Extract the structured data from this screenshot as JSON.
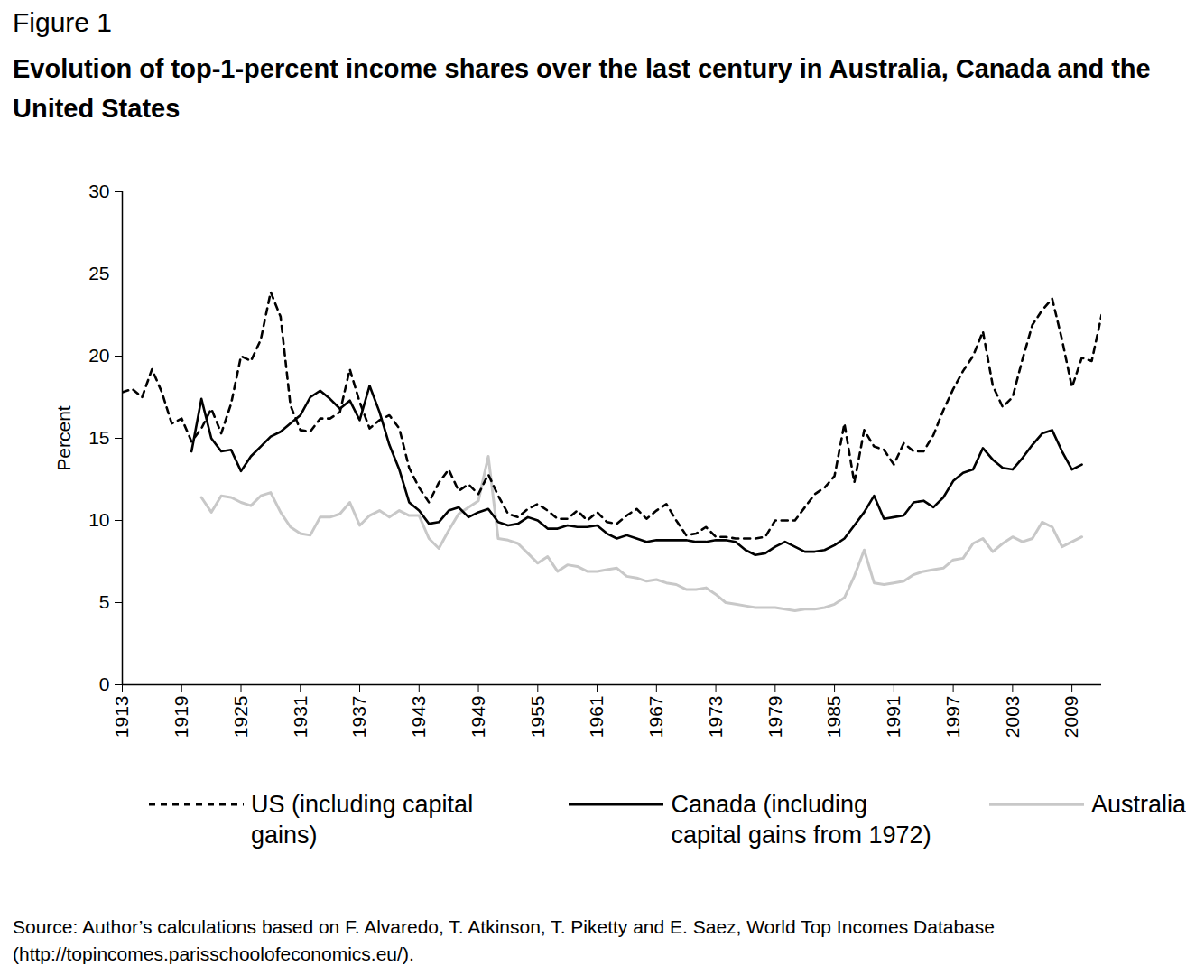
{
  "chart_data": {
    "type": "line",
    "figure_label": "Figure 1",
    "title": "Evolution of top-1-percent income shares over the last century in Australia, Canada and the United States",
    "y_label": "Percent",
    "source": "Source: Author’s calculations based on F. Alvaredo, T. Atkinson, T. Piketty and E. Saez, World Top Incomes Database (http://topincomes.parisschoolofeconomics.eu/).",
    "x": [
      1913,
      1914,
      1915,
      1916,
      1917,
      1918,
      1919,
      1920,
      1921,
      1922,
      1923,
      1924,
      1925,
      1926,
      1927,
      1928,
      1929,
      1930,
      1931,
      1932,
      1933,
      1934,
      1935,
      1936,
      1937,
      1938,
      1939,
      1940,
      1941,
      1942,
      1943,
      1944,
      1945,
      1946,
      1947,
      1948,
      1949,
      1950,
      1951,
      1952,
      1953,
      1954,
      1955,
      1956,
      1957,
      1958,
      1959,
      1960,
      1961,
      1962,
      1963,
      1964,
      1965,
      1966,
      1967,
      1968,
      1969,
      1970,
      1971,
      1972,
      1973,
      1974,
      1975,
      1976,
      1977,
      1978,
      1979,
      1980,
      1981,
      1982,
      1983,
      1984,
      1985,
      1986,
      1987,
      1988,
      1989,
      1990,
      1991,
      1992,
      1993,
      1994,
      1995,
      1996,
      1997,
      1998,
      1999,
      2000,
      2001,
      2002,
      2003,
      2004,
      2005,
      2006,
      2007,
      2008,
      2009,
      2010,
      2011,
      2012
    ],
    "series": [
      {
        "name": "US (including capital gains)",
        "color": "#000000",
        "line_style": "dashed",
        "values": [
          17.8,
          18.0,
          17.5,
          19.2,
          17.8,
          15.9,
          16.2,
          14.8,
          15.6,
          16.8,
          15.3,
          17.1,
          20.0,
          19.7,
          21.0,
          23.9,
          22.4,
          17.0,
          15.5,
          15.4,
          16.2,
          16.2,
          16.6,
          19.2,
          17.2,
          15.6,
          16.1,
          16.4,
          15.6,
          13.2,
          12.0,
          11.1,
          12.3,
          13.1,
          11.8,
          12.2,
          11.6,
          12.8,
          11.5,
          10.4,
          10.2,
          10.7,
          11.0,
          10.6,
          10.1,
          10.1,
          10.6,
          10.0,
          10.5,
          9.9,
          9.8,
          10.3,
          10.7,
          10.1,
          10.6,
          11.0,
          10.0,
          9.1,
          9.2,
          9.6,
          9.0,
          9.0,
          8.9,
          8.9,
          8.9,
          9.0,
          10.0,
          10.0,
          10.0,
          10.8,
          11.6,
          12.0,
          12.7,
          15.9,
          12.3,
          15.5,
          14.5,
          14.3,
          13.4,
          14.7,
          14.2,
          14.2,
          15.2,
          16.7,
          18.0,
          19.1,
          20.0,
          21.5,
          18.2,
          16.9,
          17.5,
          19.8,
          21.9,
          22.8,
          23.5,
          21.0,
          18.1,
          19.9,
          19.7,
          22.5
        ]
      },
      {
        "name": "Canada (including capital gains from 1972)",
        "color": "#000000",
        "line_style": "solid",
        "values": [
          null,
          null,
          null,
          null,
          null,
          null,
          null,
          14.2,
          17.4,
          15.0,
          14.2,
          14.3,
          13.0,
          13.9,
          14.5,
          15.1,
          15.4,
          15.9,
          16.4,
          17.5,
          17.9,
          17.4,
          16.8,
          17.3,
          16.1,
          18.2,
          16.6,
          14.6,
          13.1,
          11.1,
          10.6,
          9.8,
          9.9,
          10.6,
          10.8,
          10.2,
          10.5,
          10.7,
          9.9,
          9.7,
          9.8,
          10.2,
          10.0,
          9.5,
          9.5,
          9.7,
          9.6,
          9.6,
          9.7,
          9.2,
          8.9,
          9.1,
          8.9,
          8.7,
          8.8,
          8.8,
          8.8,
          8.8,
          8.7,
          8.7,
          8.8,
          8.8,
          8.7,
          8.2,
          7.9,
          8.0,
          8.4,
          8.7,
          8.4,
          8.1,
          8.1,
          8.2,
          8.5,
          8.9,
          9.7,
          10.5,
          11.5,
          10.1,
          10.2,
          10.3,
          11.1,
          11.2,
          10.8,
          11.4,
          12.4,
          12.9,
          13.1,
          14.4,
          13.7,
          13.2,
          13.1,
          13.8,
          14.6,
          15.3,
          15.5,
          14.2,
          13.1,
          13.4,
          null,
          null
        ]
      },
      {
        "name": "Australia",
        "color": "#c8c8c8",
        "line_style": "solid",
        "values": [
          null,
          null,
          null,
          null,
          null,
          null,
          null,
          null,
          11.4,
          10.5,
          11.5,
          11.4,
          11.1,
          10.9,
          11.5,
          11.7,
          10.5,
          9.6,
          9.2,
          9.1,
          10.2,
          10.2,
          10.4,
          11.1,
          9.7,
          10.3,
          10.6,
          10.2,
          10.6,
          10.3,
          10.3,
          8.9,
          8.3,
          9.4,
          10.4,
          10.8,
          11.2,
          13.9,
          8.9,
          8.8,
          8.6,
          8.0,
          7.4,
          7.8,
          6.9,
          7.3,
          7.2,
          6.9,
          6.9,
          7.0,
          7.1,
          6.6,
          6.5,
          6.3,
          6.4,
          6.2,
          6.1,
          5.8,
          5.8,
          5.9,
          5.5,
          5.0,
          4.9,
          4.8,
          4.7,
          4.7,
          4.7,
          4.6,
          4.5,
          4.6,
          4.6,
          4.7,
          4.9,
          5.3,
          6.6,
          8.2,
          6.2,
          6.1,
          6.2,
          6.3,
          6.7,
          6.9,
          7.0,
          7.1,
          7.6,
          7.7,
          8.6,
          8.9,
          8.1,
          8.6,
          9.0,
          8.7,
          8.9,
          9.9,
          9.6,
          8.4,
          8.7,
          9.0,
          null,
          null
        ]
      }
    ],
    "xlim": [
      1913,
      2012
    ],
    "xticks": [
      1913,
      1919,
      1925,
      1931,
      1937,
      1943,
      1949,
      1955,
      1961,
      1967,
      1973,
      1979,
      1985,
      1991,
      1997,
      2003,
      2009
    ],
    "ylim": [
      0,
      30
    ],
    "yticks": [
      0,
      5,
      10,
      15,
      20,
      25,
      30
    ],
    "grid": false,
    "legend": "bottom"
  }
}
